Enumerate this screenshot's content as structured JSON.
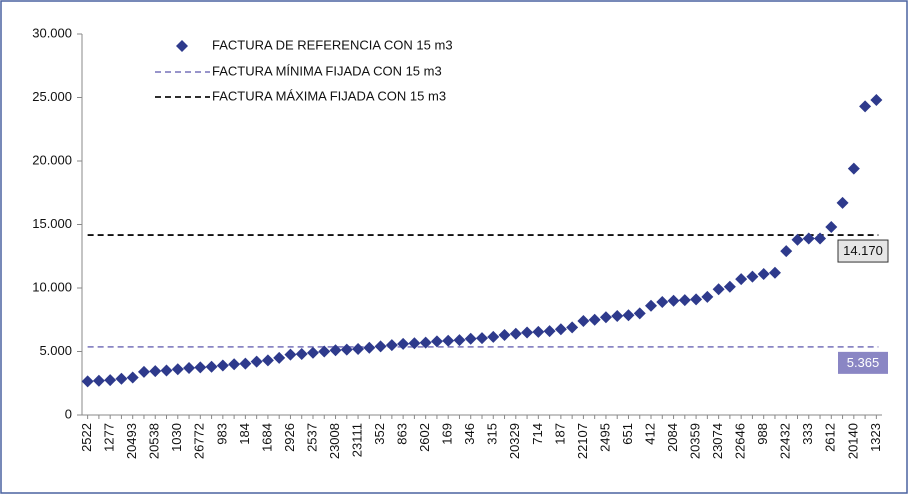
{
  "chart_data": {
    "type": "scatter",
    "categories": [
      "2522",
      null,
      "1277",
      null,
      "20493",
      null,
      "20538",
      null,
      "1030",
      null,
      "26772",
      null,
      "983",
      null,
      "184",
      null,
      "1684",
      null,
      "2926",
      null,
      "2537",
      null,
      "23008",
      null,
      "23111",
      null,
      "352",
      null,
      "863",
      null,
      "2602",
      null,
      "169",
      null,
      "346",
      null,
      "315",
      null,
      "20329",
      null,
      "714",
      null,
      "187",
      null,
      "22107",
      null,
      "2495",
      null,
      "651",
      null,
      "412",
      null,
      "2084",
      null,
      "20359",
      null,
      "23074",
      null,
      "22646",
      null,
      "988",
      null,
      "22432",
      null,
      "333",
      null,
      "2612",
      null,
      "20140",
      null,
      "1323"
    ],
    "series": [
      {
        "name": "FACTURA DE REFERENCIA CON 15 m3",
        "color": "#2e3a8c",
        "values": [
          2650,
          2700,
          2750,
          2850,
          2950,
          3400,
          3450,
          3500,
          3600,
          3700,
          3750,
          3800,
          3900,
          4000,
          4050,
          4200,
          4300,
          4500,
          4750,
          4800,
          4900,
          5000,
          5100,
          5150,
          5200,
          5300,
          5400,
          5500,
          5600,
          5650,
          5700,
          5800,
          5850,
          5900,
          6000,
          6050,
          6150,
          6300,
          6400,
          6500,
          6550,
          6600,
          6750,
          6900,
          7400,
          7500,
          7700,
          7800,
          7850,
          8000,
          8600,
          8900,
          9000,
          9050,
          9100,
          9300,
          9900,
          10100,
          10700,
          10900,
          11100,
          11200,
          12900,
          13800,
          13900,
          13900,
          14800,
          16700,
          19400,
          24300,
          24800
        ]
      }
    ],
    "reference_lines": [
      {
        "name": "FACTURA MÍNIMA FIJADA CON 15 m3",
        "value": 5365,
        "value_label": "5.365",
        "color": "#8a86c4"
      },
      {
        "name": "FACTURA MÁXIMA FIJADA CON 15 m3",
        "value": 14170,
        "value_label": "14.170",
        "color": "#111111"
      }
    ],
    "ylim": [
      0,
      30000
    ],
    "yticks": [
      0,
      {
        "value": 5000,
        "label": "5.000"
      },
      {
        "value": 10000,
        "label": "10.000"
      },
      {
        "value": 15000,
        "label": "15.000"
      },
      {
        "value": 20000,
        "label": "20.000"
      },
      {
        "value": 25000,
        "label": "25.000"
      },
      {
        "value": 30000,
        "label": "30.000"
      }
    ]
  }
}
